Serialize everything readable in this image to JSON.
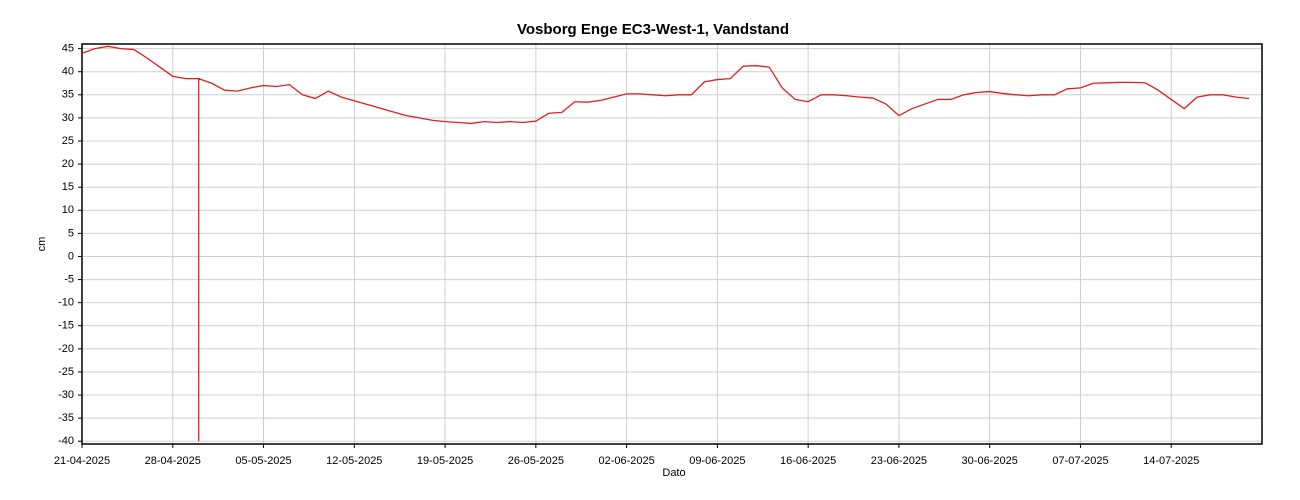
{
  "chart_data": {
    "type": "line",
    "title": "Vosborg Enge EC3-West-1, Vandstand",
    "x_label": "Dato",
    "y_label": "cm",
    "x": [
      "2025-04-21",
      "2025-04-22",
      "2025-04-23",
      "2025-04-24",
      "2025-04-25",
      "2025-04-26",
      "2025-04-27",
      "2025-04-28",
      "2025-04-29",
      "2025-04-30",
      "2025-04-30",
      "2025-04-30",
      "2025-05-01",
      "2025-05-02",
      "2025-05-03",
      "2025-05-04",
      "2025-05-05",
      "2025-05-06",
      "2025-05-07",
      "2025-05-08",
      "2025-05-09",
      "2025-05-10",
      "2025-05-11",
      "2025-05-16",
      "2025-05-17",
      "2025-05-18",
      "2025-05-19",
      "2025-05-20",
      "2025-05-21",
      "2025-05-22",
      "2025-05-23",
      "2025-05-24",
      "2025-05-25",
      "2025-05-26",
      "2025-05-27",
      "2025-05-28",
      "2025-05-29",
      "2025-05-30",
      "2025-05-31",
      "2025-06-01",
      "2025-06-02",
      "2025-06-03",
      "2025-06-04",
      "2025-06-05",
      "2025-06-06",
      "2025-06-07",
      "2025-06-08",
      "2025-06-09",
      "2025-06-10",
      "2025-06-11",
      "2025-06-12",
      "2025-06-13",
      "2025-06-14",
      "2025-06-15",
      "2025-06-16",
      "2025-06-17",
      "2025-06-18",
      "2025-06-19",
      "2025-06-20",
      "2025-06-21",
      "2025-06-22",
      "2025-06-23",
      "2025-06-24",
      "2025-06-25",
      "2025-06-26",
      "2025-06-27",
      "2025-06-28",
      "2025-06-29",
      "2025-06-30",
      "2025-07-01",
      "2025-07-02",
      "2025-07-03",
      "2025-07-04",
      "2025-07-05",
      "2025-07-06",
      "2025-07-07",
      "2025-07-08",
      "2025-07-09",
      "2025-07-10",
      "2025-07-11",
      "2025-07-12",
      "2025-07-13",
      "2025-07-14",
      "2025-07-15",
      "2025-07-16",
      "2025-07-17",
      "2025-07-18",
      "2025-07-19",
      "2025-07-20"
    ],
    "series": [
      {
        "name": "Vandstand",
        "color": "#e02020",
        "values": [
          44,
          45,
          45.5,
          45,
          44.8,
          43,
          41,
          39,
          38.5,
          38.5,
          -40,
          38.5,
          37.5,
          36,
          35.8,
          36.5,
          37,
          36.8,
          37.2,
          35,
          34.2,
          35.8,
          34.5,
          30.5,
          30,
          29.5,
          29.2,
          29,
          28.8,
          29.2,
          29,
          29.2,
          29,
          29.3,
          31,
          31.2,
          33.5,
          33.4,
          33.8,
          34.5,
          35.2,
          35.2,
          35,
          34.8,
          35,
          35,
          37.8,
          38.3,
          38.5,
          41.2,
          41.3,
          41,
          36.5,
          34,
          33.5,
          35,
          35,
          34.8,
          34.5,
          34.3,
          33,
          30.5,
          32,
          33,
          34,
          34,
          35,
          35.5,
          35.7,
          35.3,
          35,
          34.8,
          35,
          35,
          36.3,
          36.5,
          37.5,
          37.6,
          37.7,
          37.7,
          37.6,
          36,
          34,
          32,
          34.5,
          35,
          35,
          34.5,
          34.2
        ]
      }
    ],
    "xlim": [
      "2025-04-21",
      "2025-07-21"
    ],
    "xticks": [
      {
        "value": "2025-04-21",
        "label": "21-04-2025"
      },
      {
        "value": "2025-04-28",
        "label": "28-04-2025"
      },
      {
        "value": "2025-05-05",
        "label": "05-05-2025"
      },
      {
        "value": "2025-05-12",
        "label": "12-05-2025"
      },
      {
        "value": "2025-05-19",
        "label": "19-05-2025"
      },
      {
        "value": "2025-05-26",
        "label": "26-05-2025"
      },
      {
        "value": "2025-06-02",
        "label": "02-06-2025"
      },
      {
        "value": "2025-06-09",
        "label": "09-06-2025"
      },
      {
        "value": "2025-06-16",
        "label": "16-06-2025"
      },
      {
        "value": "2025-06-23",
        "label": "23-06-2025"
      },
      {
        "value": "2025-06-30",
        "label": "30-06-2025"
      },
      {
        "value": "2025-07-07",
        "label": "07-07-2025"
      },
      {
        "value": "2025-07-14",
        "label": "14-07-2025"
      }
    ],
    "ylim": [
      -40.6,
      46
    ],
    "yticks": [
      -40,
      -35,
      -30,
      -25,
      -20,
      -15,
      -10,
      -5,
      0,
      5,
      10,
      15,
      20,
      25,
      30,
      35,
      40,
      45
    ],
    "grid": true
  }
}
